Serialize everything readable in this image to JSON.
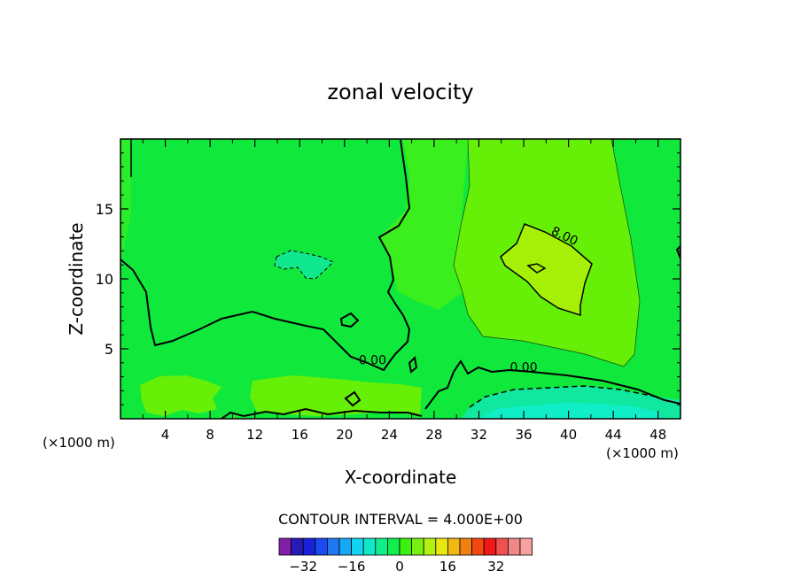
{
  "chart_data": {
    "type": "heatmap",
    "title": "zonal velocity",
    "xlabel": "X-coordinate",
    "ylabel": "Z-coordinate",
    "x_unit_label_left": "(×1000 m)",
    "x_unit_label_right": "(×1000 m)",
    "xlim": [
      0,
      50
    ],
    "ylim": [
      0,
      20
    ],
    "x_ticks": [
      4,
      8,
      12,
      16,
      20,
      24,
      28,
      32,
      36,
      40,
      44,
      48
    ],
    "y_ticks": [
      5,
      10,
      15
    ],
    "contour_labels": [
      {
        "text": "8.00",
        "x": 39.5,
        "z": 12.8
      },
      {
        "text": "0.00",
        "x": 22.5,
        "z": 3.9
      },
      {
        "text": "0.00",
        "x": 36.0,
        "z": 3.4
      }
    ],
    "contour_interval_text": "CONTOUR INTERVAL = 4.000E+00",
    "colorbar": {
      "colors": [
        "#7f1fa8",
        "#2a1ab5",
        "#1a22d8",
        "#1a4af0",
        "#1f78f2",
        "#14a8f5",
        "#10d4f0",
        "#10e8c8",
        "#10ee8c",
        "#10ee50",
        "#3cf010",
        "#78f010",
        "#b4f010",
        "#e8e810",
        "#f0b810",
        "#f08010",
        "#f04810",
        "#f01818",
        "#f05050",
        "#f08888",
        "#f8a0a0"
      ],
      "tick_labels": [
        "-32",
        "-16",
        "0",
        "16",
        "32"
      ],
      "tick_values": [
        -32,
        -16,
        0,
        16,
        32
      ],
      "levels_min": -40,
      "levels_step": 4
    }
  }
}
